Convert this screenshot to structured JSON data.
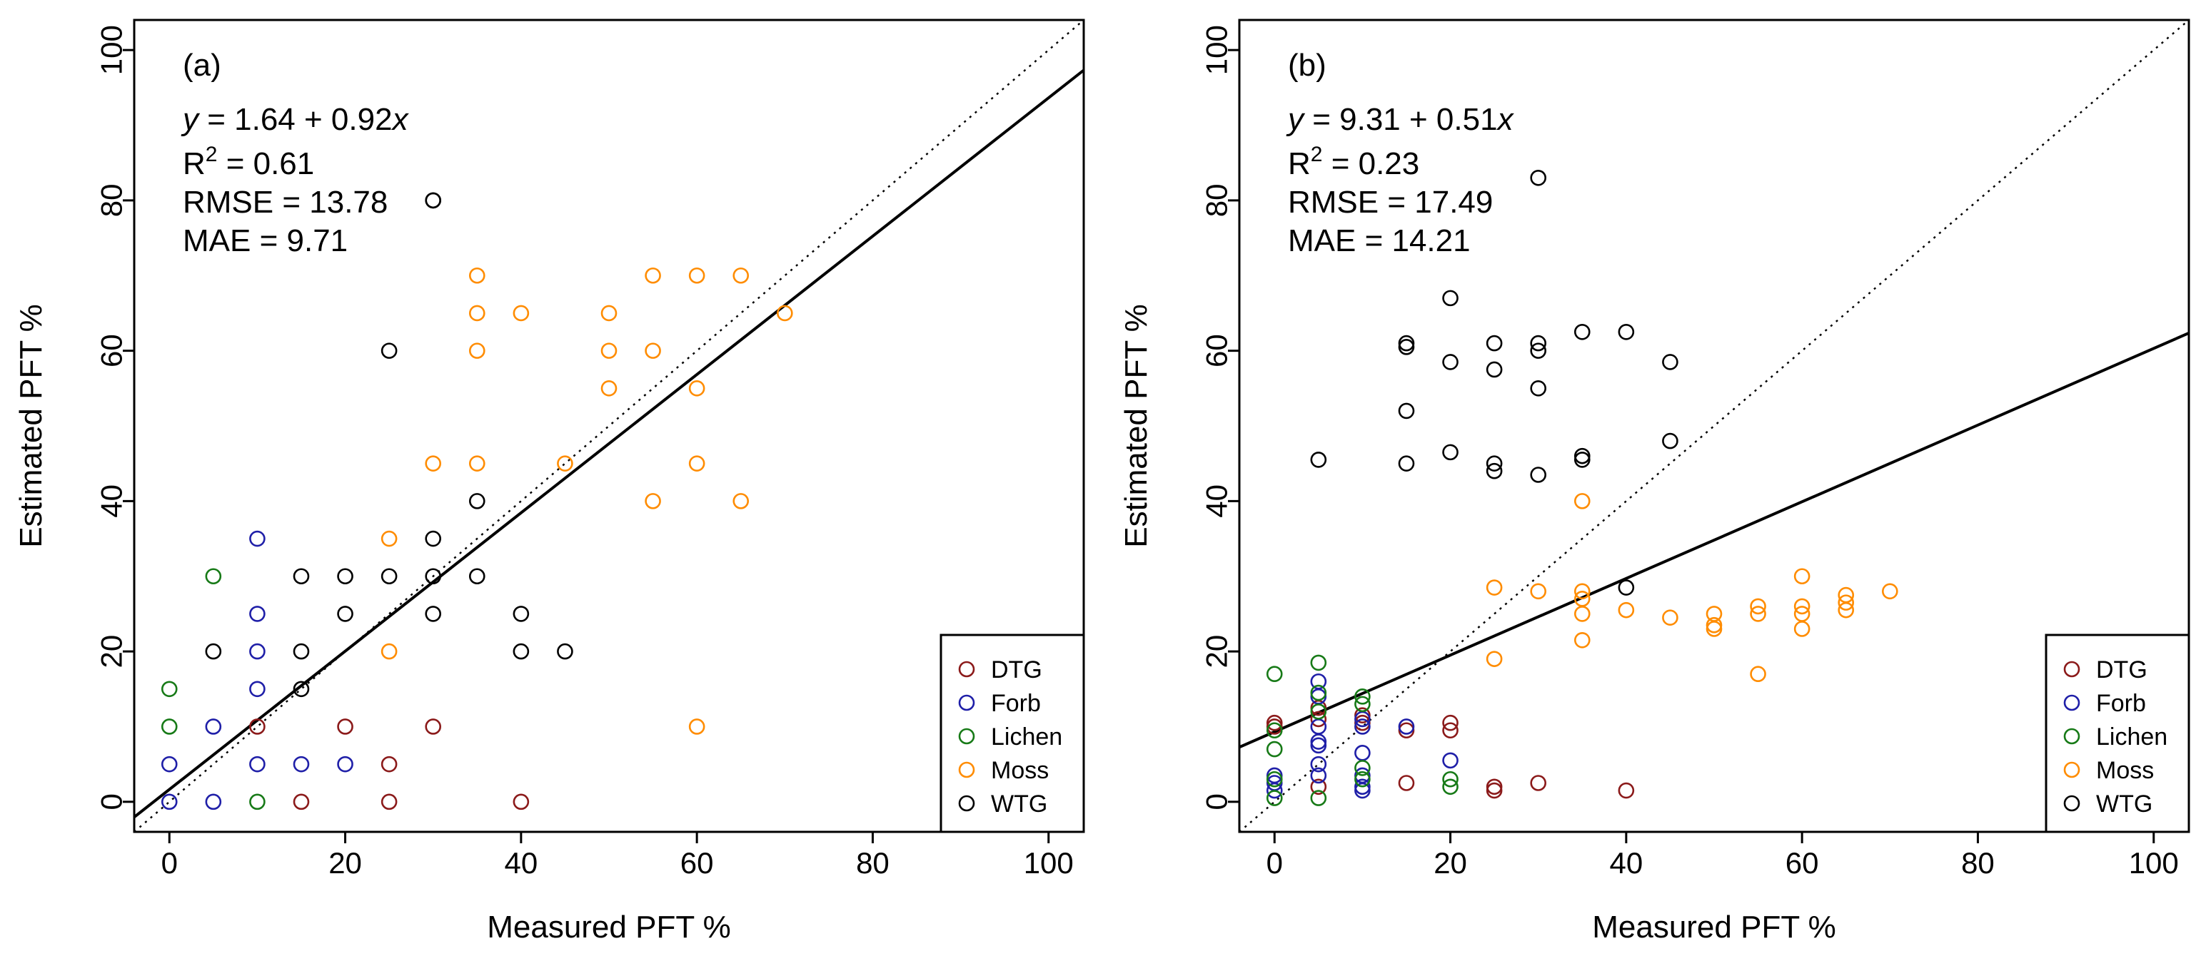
{
  "colors": {
    "DTG": "#8b1a1a",
    "Forb": "#1f1fa8",
    "Lichen": "#177a17",
    "Moss": "#ff8c00",
    "WTG": "#000000"
  },
  "chart_data": [
    {
      "type": "scatter",
      "panel_label": "(a)",
      "xlabel": "Measured PFT %",
      "ylabel": "Estimated PFT %",
      "xlim": [
        -4,
        104
      ],
      "ylim": [
        -4,
        104
      ],
      "xticks": [
        0,
        20,
        40,
        60,
        80,
        100
      ],
      "yticks": [
        0,
        20,
        40,
        60,
        80,
        100
      ],
      "stats": {
        "eq_y": "y",
        "eq_rest": " = 1.64 + 0.92",
        "eq_x": "x",
        "r2_prefix": "R",
        "r2_sup": "2",
        "r2_value": " = 0.61",
        "rmse": "RMSE = 13.78",
        "mae": "MAE = 9.71"
      },
      "fit": {
        "intercept": 1.64,
        "slope": 0.92
      },
      "one_to_one": true,
      "legend": [
        "DTG",
        "Forb",
        "Lichen",
        "Moss",
        "WTG"
      ],
      "series": [
        {
          "name": "DTG",
          "x": [
            10,
            15,
            20,
            25,
            25,
            30,
            40
          ],
          "y": [
            10,
            0,
            10,
            5,
            0,
            10,
            0
          ]
        },
        {
          "name": "Forb",
          "x": [
            0,
            0,
            5,
            5,
            10,
            10,
            10,
            10,
            10,
            15,
            20
          ],
          "y": [
            5,
            0,
            10,
            0,
            35,
            25,
            20,
            15,
            5,
            5,
            5
          ]
        },
        {
          "name": "Lichen",
          "x": [
            0,
            0,
            5,
            10
          ],
          "y": [
            15,
            10,
            30,
            0
          ]
        },
        {
          "name": "Moss",
          "x": [
            25,
            25,
            30,
            35,
            35,
            35,
            35,
            40,
            45,
            50,
            50,
            50,
            55,
            55,
            55,
            60,
            60,
            60,
            60,
            65,
            65,
            70
          ],
          "y": [
            35,
            20,
            45,
            70,
            65,
            60,
            45,
            65,
            45,
            65,
            60,
            55,
            70,
            60,
            40,
            70,
            55,
            45,
            10,
            70,
            40,
            65
          ]
        },
        {
          "name": "WTG",
          "x": [
            5,
            15,
            15,
            15,
            20,
            20,
            25,
            25,
            30,
            30,
            30,
            30,
            35,
            35,
            40,
            40,
            45,
            30
          ],
          "y": [
            20,
            30,
            20,
            15,
            30,
            25,
            60,
            30,
            35,
            30,
            25,
            80,
            40,
            30,
            25,
            20,
            20,
            80
          ]
        }
      ]
    },
    {
      "type": "scatter",
      "panel_label": "(b)",
      "xlabel": "Measured PFT %",
      "ylabel": "Estimated PFT %",
      "xlim": [
        -4,
        104
      ],
      "ylim": [
        -4,
        104
      ],
      "xticks": [
        0,
        20,
        40,
        60,
        80,
        100
      ],
      "yticks": [
        0,
        20,
        40,
        60,
        80,
        100
      ],
      "stats": {
        "eq_y": "y",
        "eq_rest": " = 9.31 + 0.51",
        "eq_x": "x",
        "r2_prefix": "R",
        "r2_sup": "2",
        "r2_value": " = 0.23",
        "rmse": "RMSE = 17.49",
        "mae": "MAE = 14.21"
      },
      "fit": {
        "intercept": 9.31,
        "slope": 0.51
      },
      "one_to_one": true,
      "legend": [
        "DTG",
        "Forb",
        "Lichen",
        "Moss",
        "WTG"
      ],
      "series": [
        {
          "name": "DTG",
          "x": [
            0,
            0,
            5,
            5,
            5,
            10,
            10,
            15,
            15,
            20,
            20,
            25,
            25,
            30,
            40
          ],
          "y": [
            10.5,
            10,
            12.5,
            11,
            2,
            11.5,
            10.5,
            9.5,
            2.5,
            10.5,
            9.5,
            2,
            1.5,
            2.5,
            1.5
          ]
        },
        {
          "name": "Forb",
          "x": [
            0,
            0,
            0,
            5,
            5,
            5,
            5,
            5,
            5,
            5,
            10,
            10,
            10,
            10,
            10,
            10,
            15,
            20
          ],
          "y": [
            3.5,
            2.5,
            1.5,
            16,
            14,
            10,
            8,
            7.5,
            5,
            3.5,
            11,
            10,
            6.5,
            3.5,
            2,
            1.5,
            10,
            5.5
          ]
        },
        {
          "name": "Lichen",
          "x": [
            0,
            0,
            0,
            0,
            0,
            5,
            5,
            5,
            5,
            10,
            10,
            10,
            10,
            20,
            20
          ],
          "y": [
            17,
            9.5,
            7,
            3,
            0.5,
            18.5,
            14.5,
            12,
            0.5,
            14,
            13,
            4.5,
            3,
            3,
            2
          ]
        },
        {
          "name": "Moss",
          "x": [
            25,
            25,
            30,
            35,
            35,
            35,
            35,
            35,
            40,
            45,
            50,
            50,
            50,
            55,
            55,
            55,
            60,
            60,
            60,
            60,
            65,
            65,
            65,
            70
          ],
          "y": [
            28.5,
            19,
            28,
            40,
            28,
            27,
            25,
            21.5,
            25.5,
            24.5,
            25,
            23.5,
            23,
            26,
            25,
            17,
            30,
            26,
            25,
            23,
            27.5,
            26.5,
            25.5,
            28
          ]
        },
        {
          "name": "WTG",
          "x": [
            5,
            15,
            15,
            15,
            15,
            20,
            20,
            20,
            25,
            25,
            25,
            25,
            30,
            30,
            30,
            30,
            30,
            35,
            35,
            35,
            40,
            40,
            45,
            45
          ],
          "y": [
            45.5,
            61,
            60.5,
            52,
            45,
            67,
            58.5,
            46.5,
            61,
            57.5,
            45,
            44,
            83,
            61,
            60,
            55,
            43.5,
            62.5,
            46,
            45.5,
            62.5,
            28.5,
            58.5,
            48
          ]
        }
      ]
    }
  ]
}
